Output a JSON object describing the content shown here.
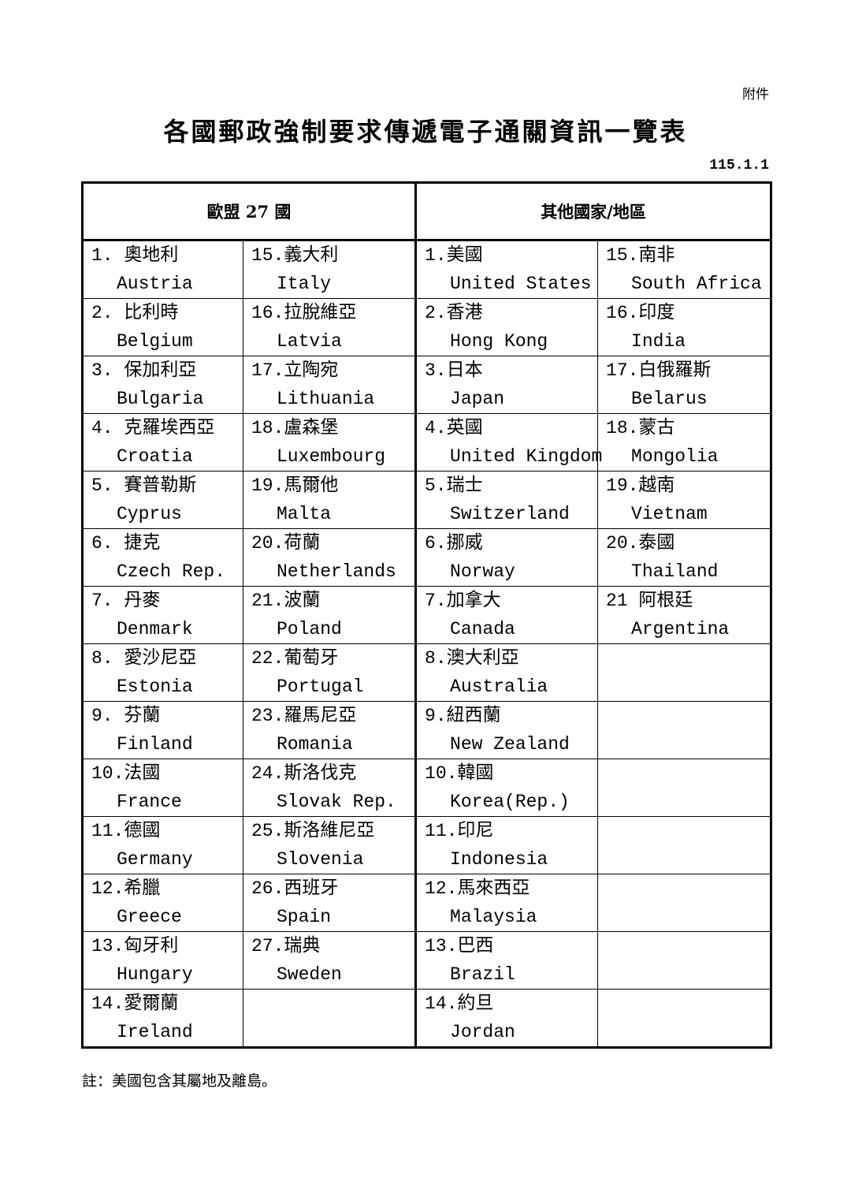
{
  "annex": "附件",
  "title": "各國郵政強制要求傳遞電子通關資訊一覽表",
  "date": "115.1.1",
  "headers": {
    "eu": "歐盟 27 國",
    "other": "其他國家/地區"
  },
  "rows": [
    [
      {
        "zh": "1. 奧地利",
        "en": "Austria"
      },
      {
        "zh": "15.義大利",
        "en": "Italy"
      },
      {
        "zh": "1.美國",
        "en": "United States"
      },
      {
        "zh": "15.南非",
        "en": "South Africa"
      }
    ],
    [
      {
        "zh": "2. 比利時",
        "en": "Belgium"
      },
      {
        "zh": "16.拉脫維亞",
        "en": "Latvia"
      },
      {
        "zh": "2.香港",
        "en": "Hong Kong"
      },
      {
        "zh": "16.印度",
        "en": "India"
      }
    ],
    [
      {
        "zh": "3. 保加利亞",
        "en": "Bulgaria"
      },
      {
        "zh": "17.立陶宛",
        "en": "Lithuania"
      },
      {
        "zh": "3.日本",
        "en": "Japan"
      },
      {
        "zh": "17.白俄羅斯",
        "en": "Belarus"
      }
    ],
    [
      {
        "zh": "4. 克羅埃西亞",
        "en": "Croatia"
      },
      {
        "zh": "18.盧森堡",
        "en": "Luxembourg"
      },
      {
        "zh": "4.英國",
        "en": "United Kingdom"
      },
      {
        "zh": "18.蒙古",
        "en": "Mongolia"
      }
    ],
    [
      {
        "zh": "5. 賽普勒斯",
        "en": "Cyprus"
      },
      {
        "zh": "19.馬爾他",
        "en": "Malta"
      },
      {
        "zh": "5.瑞士",
        "en": "Switzerland"
      },
      {
        "zh": "19.越南",
        "en": "Vietnam"
      }
    ],
    [
      {
        "zh": "6. 捷克",
        "en": "Czech Rep."
      },
      {
        "zh": "20.荷蘭",
        "en": "Netherlands"
      },
      {
        "zh": "6.挪威",
        "en": "Norway"
      },
      {
        "zh": "20.泰國",
        "en": "Thailand"
      }
    ],
    [
      {
        "zh": "7. 丹麥",
        "en": "Denmark"
      },
      {
        "zh": "21.波蘭",
        "en": "Poland"
      },
      {
        "zh": "7.加拿大",
        "en": "Canada"
      },
      {
        "zh": "21 阿根廷",
        "en": "Argentina"
      }
    ],
    [
      {
        "zh": "8. 愛沙尼亞",
        "en": "Estonia"
      },
      {
        "zh": "22.葡萄牙",
        "en": "Portugal"
      },
      {
        "zh": "8.澳大利亞",
        "en": "Australia"
      },
      {
        "zh": "",
        "en": ""
      }
    ],
    [
      {
        "zh": "9. 芬蘭",
        "en": "Finland"
      },
      {
        "zh": "23.羅馬尼亞",
        "en": "Romania"
      },
      {
        "zh": "9.紐西蘭",
        "en": "New Zealand"
      },
      {
        "zh": "",
        "en": ""
      }
    ],
    [
      {
        "zh": "10.法國",
        "en": "France"
      },
      {
        "zh": "24.斯洛伐克",
        "en": "Slovak Rep."
      },
      {
        "zh": "10.韓國",
        "en": "Korea(Rep.)"
      },
      {
        "zh": "",
        "en": ""
      }
    ],
    [
      {
        "zh": "11.德國",
        "en": "Germany"
      },
      {
        "zh": "25.斯洛維尼亞",
        "en": "Slovenia"
      },
      {
        "zh": "11.印尼",
        "en": "Indonesia"
      },
      {
        "zh": "",
        "en": ""
      }
    ],
    [
      {
        "zh": "12.希臘",
        "en": "Greece"
      },
      {
        "zh": "26.西班牙",
        "en": "Spain"
      },
      {
        "zh": "12.馬來西亞",
        "en": "Malaysia"
      },
      {
        "zh": "",
        "en": ""
      }
    ],
    [
      {
        "zh": "13.匈牙利",
        "en": "Hungary"
      },
      {
        "zh": "27.瑞典",
        "en": "Sweden"
      },
      {
        "zh": "13.巴西",
        "en": "Brazil"
      },
      {
        "zh": "",
        "en": ""
      }
    ],
    [
      {
        "zh": "14.愛爾蘭",
        "en": "Ireland"
      },
      {
        "zh": "",
        "en": ""
      },
      {
        "zh": "14.約旦",
        "en": "Jordan"
      },
      {
        "zh": "",
        "en": ""
      }
    ]
  ],
  "note": "註：美國包含其屬地及離島。"
}
